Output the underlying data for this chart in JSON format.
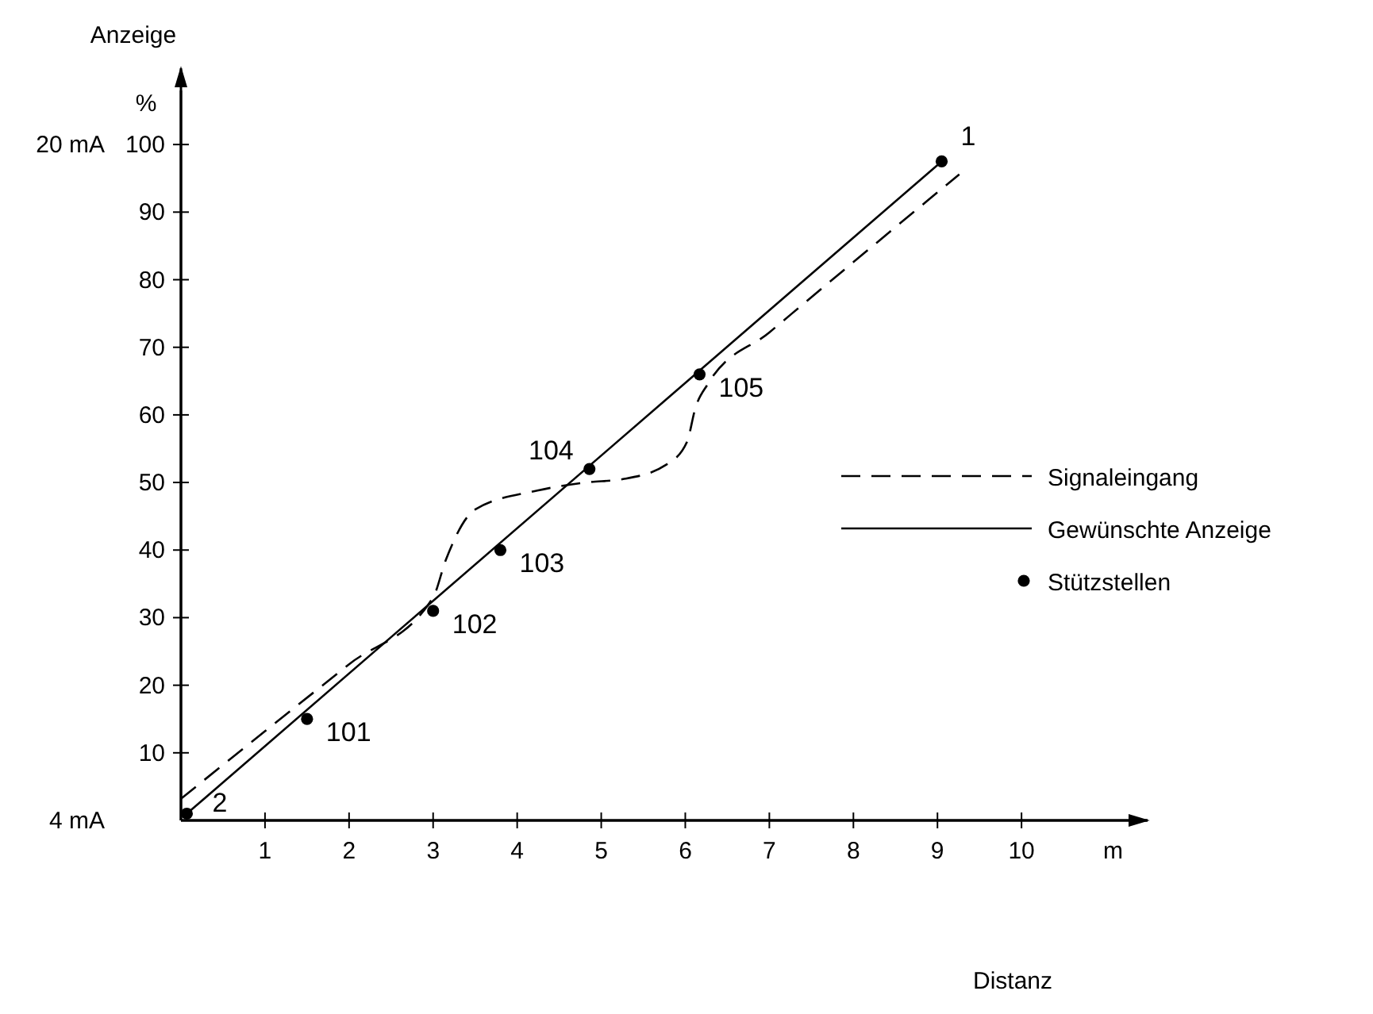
{
  "chart_data": {
    "type": "line",
    "xlabel": "Distanz",
    "ylabel": "Anzeige",
    "xlim": [
      0,
      11.5
    ],
    "ylim": [
      0,
      108
    ],
    "xticks": [
      1,
      2,
      3,
      4,
      5,
      6,
      7,
      8,
      9,
      10
    ],
    "yticks": [
      10,
      20,
      30,
      40,
      50,
      60,
      70,
      80,
      90,
      100
    ],
    "y2lim": [
      4,
      21.28
    ],
    "y2ticks": [
      {
        "value": 4,
        "label": "4 mA"
      },
      {
        "value": 20,
        "label": "20 mA"
      }
    ],
    "series": [
      {
        "name": "Signaleingang",
        "color": "#000000",
        "line_style": "dashed",
        "x": [
          0,
          1,
          2,
          3,
          3.15,
          3.5,
          4.24,
          4.82,
          5.26,
          5.77,
          6.02,
          6.12,
          6.27,
          7,
          8,
          9.26
        ],
        "values": [
          3.2,
          13.2,
          23.1,
          33,
          38.5,
          46,
          48.8,
          50,
          50.5,
          52.6,
          56,
          61,
          64.6,
          72.2,
          82.6,
          95.6
        ]
      },
      {
        "name": "Gewünschte Anzeige",
        "color": "#000000",
        "line_style": "solid",
        "x": [
          0.07,
          9.05
        ],
        "values": [
          1,
          97.5
        ]
      },
      {
        "name": "Stützstellen",
        "type": "scatter",
        "marker": "circle",
        "color": "#000000",
        "x": [
          0.07,
          1.5,
          3,
          3.8,
          4.86,
          6.17,
          9.05
        ],
        "values": [
          1,
          15,
          31,
          40,
          52,
          66,
          97.5
        ]
      }
    ],
    "annotations": [
      "%",
      "m",
      {
        "text": "2",
        "x": 0.07,
        "y": 1
      },
      {
        "text": "101",
        "x": 1.5,
        "y": 15
      },
      {
        "text": "102",
        "x": 3,
        "y": 31
      },
      {
        "text": "103",
        "x": 3.8,
        "y": 40
      },
      {
        "text": "104",
        "x": 4.86,
        "y": 52
      },
      {
        "text": "105",
        "x": 6.17,
        "y": 66
      },
      {
        "text": "1",
        "x": 9.05,
        "y": 97.5
      }
    ],
    "legend": "right",
    "grid": false
  }
}
